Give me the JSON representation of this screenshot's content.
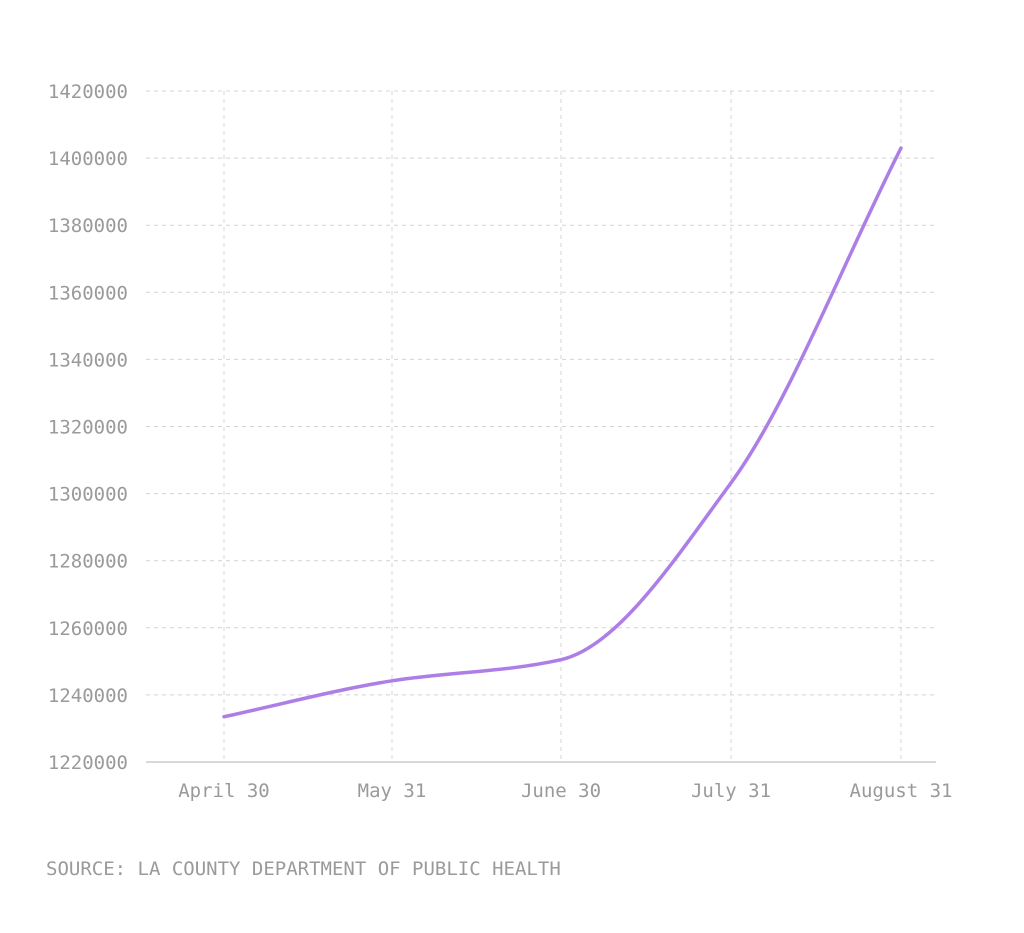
{
  "chart_data": {
    "type": "line",
    "title": "",
    "xlabel": "",
    "ylabel": "",
    "categories": [
      "April 30",
      "May 31",
      "June 30",
      "July 31",
      "August 31"
    ],
    "series": [
      {
        "values": [
          1233500,
          1244200,
          1250500,
          1303200,
          1403000
        ]
      }
    ],
    "ylim": [
      1220000,
      1420000
    ],
    "yticks": [
      1220000,
      1240000,
      1260000,
      1280000,
      1300000,
      1320000,
      1340000,
      1360000,
      1380000,
      1400000,
      1420000
    ],
    "grid": true,
    "legend": "none",
    "smooth": true,
    "line_color": "#ad7ee6"
  },
  "source": "SOURCE: LA COUNTY DEPARTMENT OF PUBLIC HEALTH"
}
